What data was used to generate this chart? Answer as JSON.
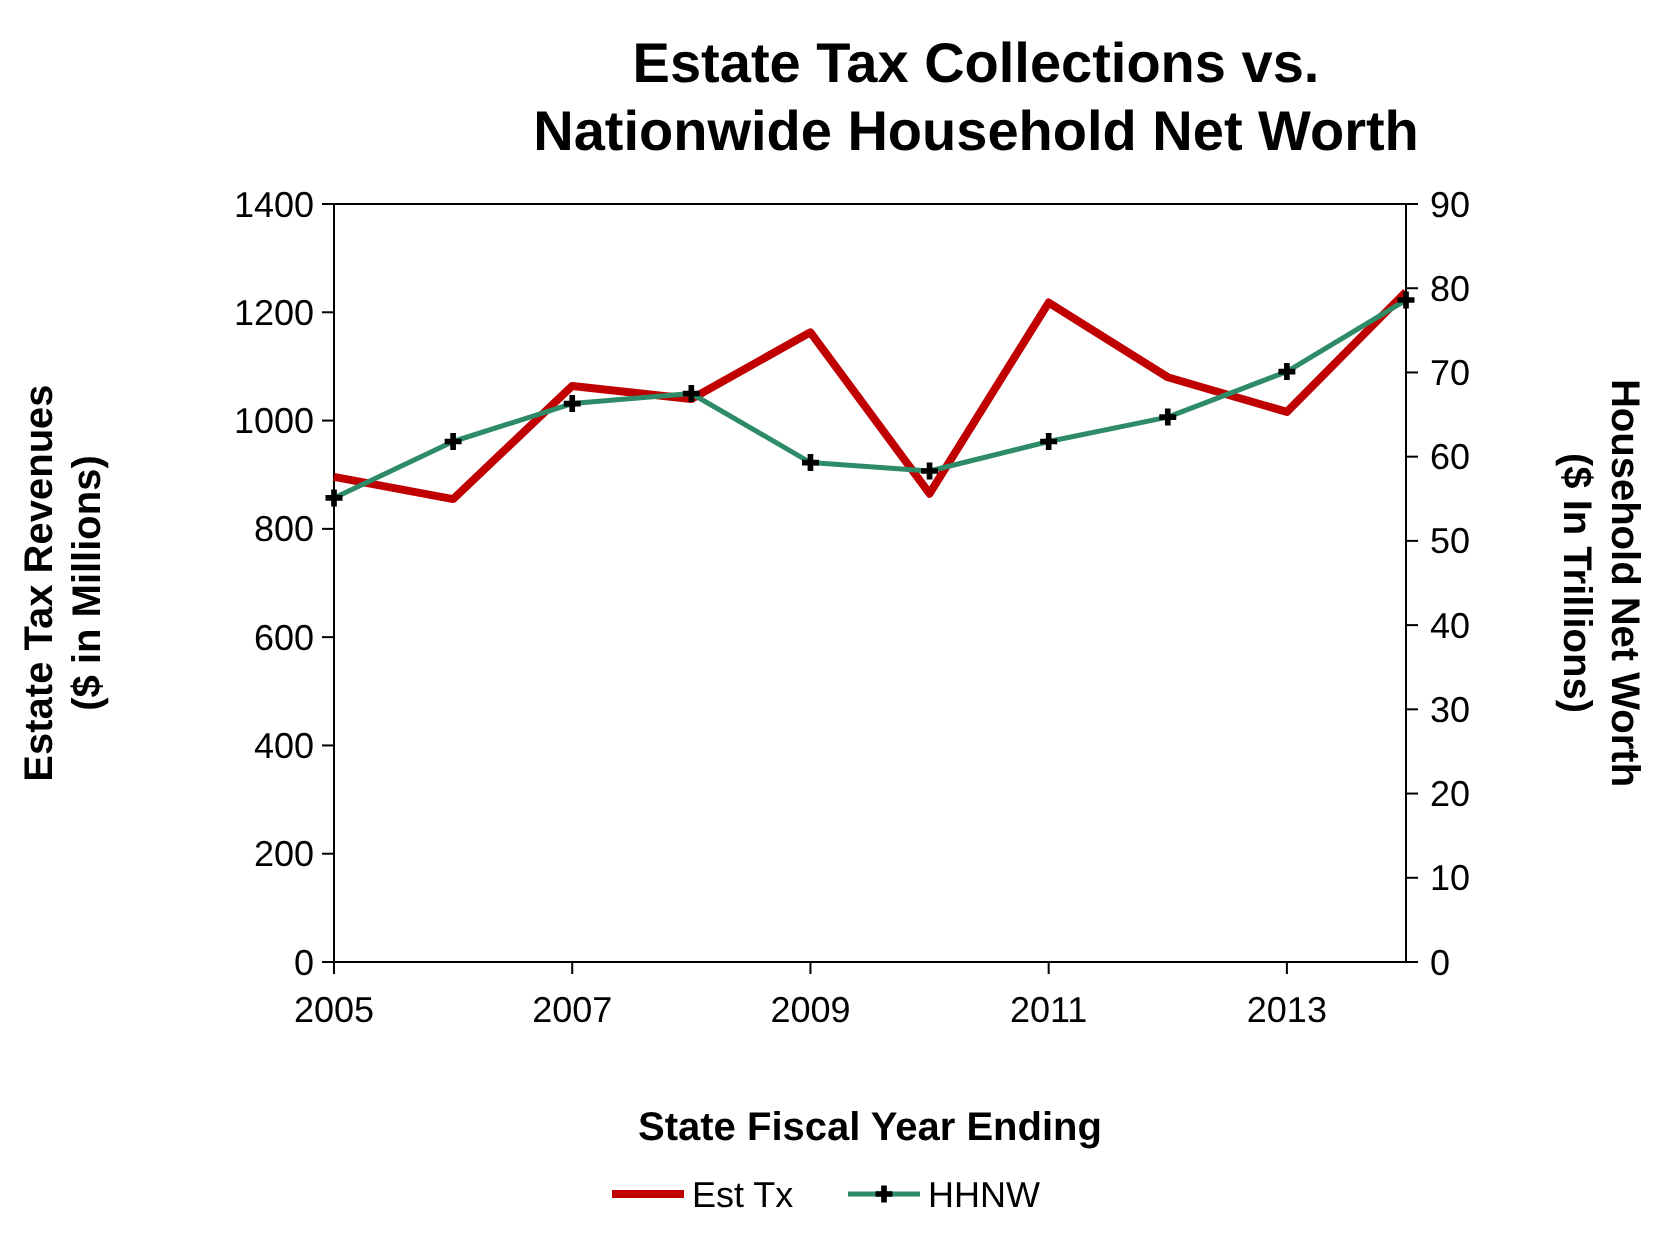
{
  "chart_data": {
    "type": "line",
    "title": "Estate Tax Collections vs.\nNationwide Household Net Worth",
    "xlabel": "State Fiscal Year Ending",
    "ylabel": "Estate Tax Revenues\n($ in Millions)",
    "y2label": "Household Net Worth\n($ In Trillions)",
    "x": [
      2005,
      2006,
      2007,
      2008,
      2009,
      2010,
      2011,
      2012,
      2013,
      2014
    ],
    "xlim": [
      2005,
      2014
    ],
    "xticks": [
      2005,
      2007,
      2009,
      2011,
      2013
    ],
    "ylim": [
      0,
      1400
    ],
    "yticks": [
      0,
      200,
      400,
      600,
      800,
      1000,
      1200,
      1400
    ],
    "y2lim": [
      0,
      90
    ],
    "y2ticks": [
      0,
      10,
      20,
      30,
      40,
      50,
      60,
      70,
      80,
      90
    ],
    "series": [
      {
        "name": "Est Tx",
        "color": "#c00000",
        "marker": "none",
        "values": [
          896,
          855,
          1064,
          1040,
          1163,
          865,
          1218,
          1080,
          1016,
          1238
        ]
      },
      {
        "name": "HHNW",
        "color": "#2e8b67",
        "marker": "cross",
        "axis": "y2",
        "values": [
          55.1,
          61.8,
          66.3,
          67.5,
          59.3,
          58.3,
          61.8,
          64.7,
          70.1,
          78.6
        ]
      }
    ],
    "legend": "bottom",
    "grid": false
  }
}
